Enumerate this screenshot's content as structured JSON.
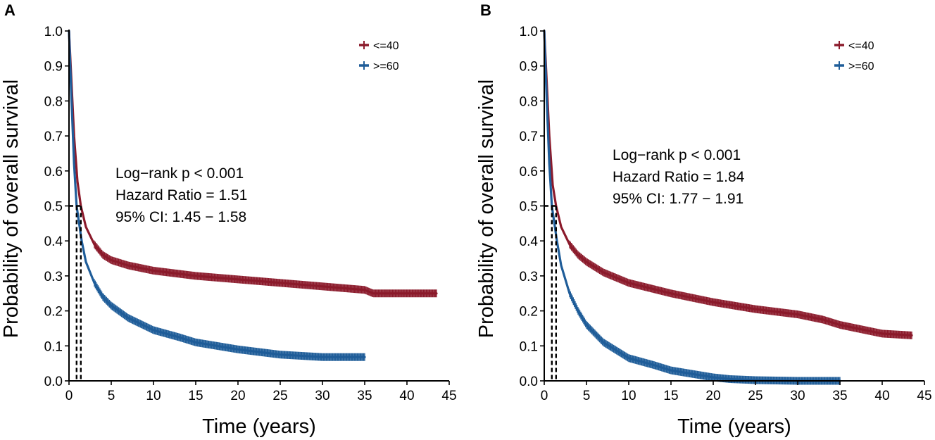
{
  "colors": {
    "le40": "#8b1a2b",
    "ge60": "#1f5d99",
    "axis": "#000000"
  },
  "chart_data": [
    {
      "panel": "A",
      "type": "line",
      "subtype": "kaplan-meier",
      "xlabel": "Time (years)",
      "ylabel": "Probability of overall survival",
      "xlim": [
        0,
        45
      ],
      "ylim": [
        0,
        1
      ],
      "xticks": [
        0,
        5,
        10,
        15,
        20,
        25,
        30,
        35,
        40,
        45
      ],
      "yticks": [
        0.0,
        0.1,
        0.2,
        0.3,
        0.4,
        0.5,
        0.6,
        0.7,
        0.8,
        0.9,
        1.0
      ],
      "legend": [
        "<=40",
        ">=60"
      ],
      "legend_position": "top-right",
      "annotations": [
        "Log−rank p < 0.001",
        "Hazard Ratio = 1.51",
        "95% CI: 1.45 − 1.58"
      ],
      "median_survival": [
        1.4,
        0.9
      ],
      "series": [
        {
          "name": "<=40",
          "color": "#8b1a2b",
          "x": [
            0,
            0.3,
            0.6,
            1.0,
            1.4,
            2,
            3,
            4,
            5,
            7,
            10,
            15,
            20,
            25,
            30,
            35,
            36,
            43.5
          ],
          "y": [
            1.0,
            0.85,
            0.7,
            0.57,
            0.5,
            0.44,
            0.39,
            0.36,
            0.345,
            0.33,
            0.315,
            0.3,
            0.29,
            0.28,
            0.27,
            0.26,
            0.25,
            0.25
          ],
          "censor_range": [
            3,
            43.5
          ]
        },
        {
          "name": ">=60",
          "color": "#1f5d99",
          "x": [
            0,
            0.3,
            0.6,
            0.9,
            1.5,
            2,
            3,
            4,
            5,
            7,
            10,
            13,
            15,
            20,
            25,
            30,
            35
          ],
          "y": [
            1.0,
            0.8,
            0.62,
            0.5,
            0.4,
            0.34,
            0.28,
            0.24,
            0.215,
            0.18,
            0.145,
            0.125,
            0.11,
            0.09,
            0.075,
            0.068,
            0.068
          ],
          "censor_range": [
            3,
            35
          ]
        }
      ]
    },
    {
      "panel": "B",
      "type": "line",
      "subtype": "kaplan-meier",
      "xlabel": "Time (years)",
      "ylabel": "Probability of overall survival",
      "xlim": [
        0,
        45
      ],
      "ylim": [
        0,
        1
      ],
      "xticks": [
        0,
        5,
        10,
        15,
        20,
        25,
        30,
        35,
        40,
        45
      ],
      "yticks": [
        0.0,
        0.1,
        0.2,
        0.3,
        0.4,
        0.5,
        0.6,
        0.7,
        0.8,
        0.9,
        1.0
      ],
      "legend": [
        "<=40",
        ">=60"
      ],
      "legend_position": "top-right",
      "annotations": [
        "Log−rank p < 0.001",
        "Hazard Ratio = 1.84",
        "95% CI: 1.77 − 1.91"
      ],
      "median_survival": [
        1.4,
        0.9
      ],
      "series": [
        {
          "name": "<=40",
          "color": "#8b1a2b",
          "x": [
            0,
            0.3,
            0.6,
            1.0,
            1.4,
            2,
            3,
            4,
            5,
            7,
            10,
            15,
            20,
            25,
            30,
            33,
            35,
            38,
            40,
            43.5
          ],
          "y": [
            1.0,
            0.85,
            0.7,
            0.56,
            0.5,
            0.44,
            0.39,
            0.36,
            0.34,
            0.31,
            0.28,
            0.25,
            0.225,
            0.205,
            0.19,
            0.175,
            0.16,
            0.145,
            0.135,
            0.13
          ],
          "censor_range": [
            3,
            43.5
          ]
        },
        {
          "name": ">=60",
          "color": "#1f5d99",
          "x": [
            0,
            0.3,
            0.6,
            0.9,
            1.5,
            2,
            3,
            4,
            5,
            7,
            10,
            13,
            15,
            18,
            20,
            22,
            25,
            30,
            35
          ],
          "y": [
            1.0,
            0.8,
            0.62,
            0.5,
            0.4,
            0.33,
            0.25,
            0.2,
            0.16,
            0.11,
            0.065,
            0.045,
            0.03,
            0.018,
            0.01,
            0.005,
            0.002,
            0.0,
            0.0
          ],
          "censor_range": [
            3,
            35
          ]
        }
      ]
    }
  ]
}
